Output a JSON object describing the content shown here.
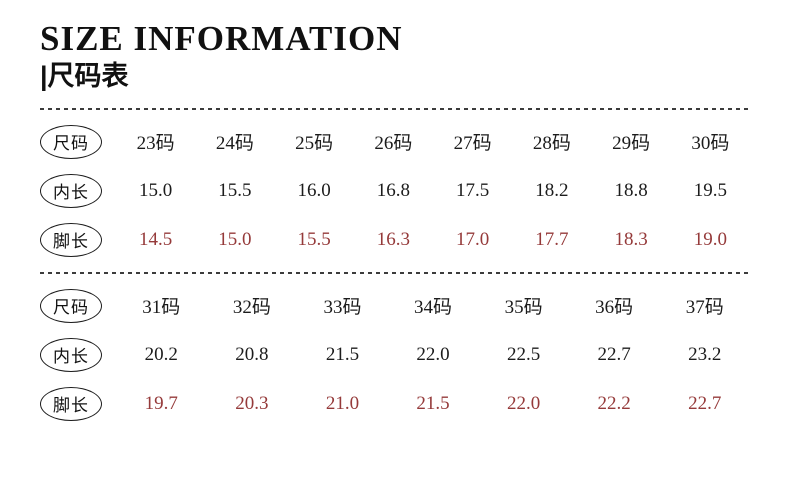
{
  "header": {
    "title": "SIZE INFORMATION",
    "subtitle": "|尺码表"
  },
  "colors": {
    "text": "#1a1a1a",
    "foot_length_text": "#953a3a"
  },
  "tables": [
    {
      "rows": [
        {
          "label": "尺码",
          "values": [
            "23码",
            "24码",
            "25码",
            "26码",
            "27码",
            "28码",
            "29码",
            "30码"
          ]
        },
        {
          "label": "内长",
          "values": [
            "15.0",
            "15.5",
            "16.0",
            "16.8",
            "17.5",
            "18.2",
            "18.8",
            "19.5"
          ]
        },
        {
          "label": "脚长",
          "values": [
            "14.5",
            "15.0",
            "15.5",
            "16.3",
            "17.0",
            "17.7",
            "18.3",
            "19.0"
          ],
          "highlight": true
        }
      ]
    },
    {
      "rows": [
        {
          "label": "尺码",
          "values": [
            "31码",
            "32码",
            "33码",
            "34码",
            "35码",
            "36码",
            "37码"
          ]
        },
        {
          "label": "内长",
          "values": [
            "20.2",
            "20.8",
            "21.5",
            "22.0",
            "22.5",
            "22.7",
            "23.2"
          ]
        },
        {
          "label": "脚长",
          "values": [
            "19.7",
            "20.3",
            "21.0",
            "21.5",
            "22.0",
            "22.2",
            "22.7"
          ],
          "highlight": true
        }
      ]
    }
  ]
}
